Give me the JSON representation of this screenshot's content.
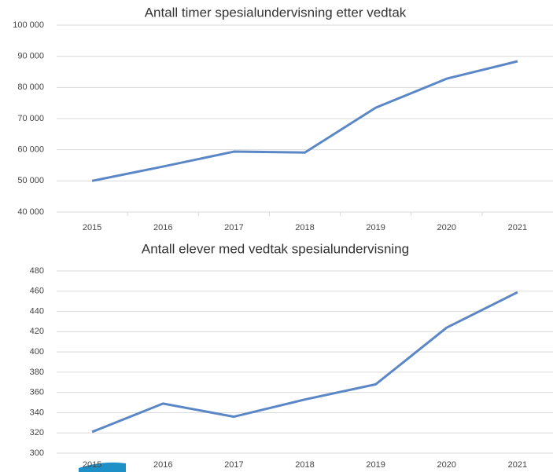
{
  "chart_data": [
    {
      "type": "line",
      "title": "Antall timer spesialundervisning etter vedtak",
      "categories": [
        "2015",
        "2016",
        "2017",
        "2018",
        "2019",
        "2020",
        "2021"
      ],
      "series": [
        {
          "color": "#5b87c6",
          "values": [
            50000,
            54600,
            59400,
            59100,
            73500,
            82800,
            88400
          ]
        }
      ],
      "ylim": [
        40000,
        100000
      ],
      "yticks": [
        {
          "value": 40000,
          "label": "40 000"
        },
        {
          "value": 50000,
          "label": "50 000"
        },
        {
          "value": 60000,
          "label": "60 000"
        },
        {
          "value": 70000,
          "label": "70 000"
        },
        {
          "value": 80000,
          "label": "80 000"
        },
        {
          "value": 90000,
          "label": "90 000"
        },
        {
          "value": 100000,
          "label": "100 000"
        }
      ],
      "grid": true
    },
    {
      "type": "line",
      "title": "Antall elever med vedtak spesialundervisning",
      "categories": [
        "2015",
        "2016",
        "2017",
        "2018",
        "2019",
        "2020",
        "2021"
      ],
      "series": [
        {
          "color": "#5b87c6",
          "values": [
            321,
            349,
            336,
            353,
            368,
            424,
            459
          ]
        }
      ],
      "ylim": [
        300,
        480
      ],
      "yticks": [
        300,
        320,
        340,
        360,
        380,
        400,
        420,
        440,
        460,
        480
      ],
      "grid": true
    }
  ]
}
